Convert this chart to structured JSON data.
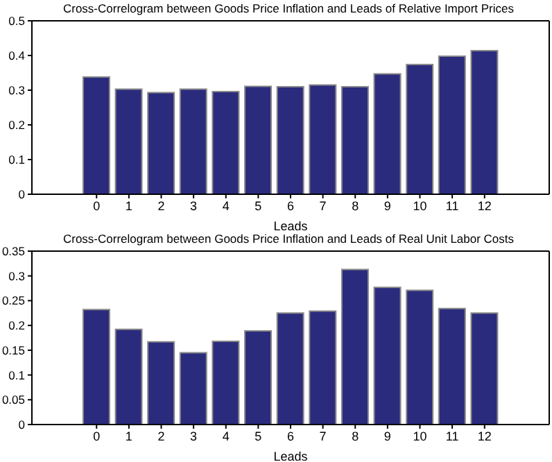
{
  "chart_data": [
    {
      "type": "bar",
      "title": "Cross-Correlogram between Goods Price Inflation and Leads of Relative Import Prices",
      "xlabel": "Leads",
      "x": [
        0,
        1,
        2,
        3,
        4,
        5,
        6,
        7,
        8,
        9,
        10,
        11,
        12
      ],
      "values": [
        0.338,
        0.303,
        0.293,
        0.303,
        0.296,
        0.311,
        0.31,
        0.315,
        0.31,
        0.347,
        0.374,
        0.398,
        0.414
      ],
      "color": "#2b2b7e",
      "xlim": [
        -2,
        14
      ],
      "xticks": [
        0,
        1,
        2,
        3,
        4,
        5,
        6,
        7,
        8,
        9,
        10,
        11,
        12
      ],
      "ylim": [
        0,
        0.5
      ],
      "yticks": [
        0,
        0.1,
        0.2,
        0.3,
        0.4,
        0.5
      ]
    },
    {
      "type": "bar",
      "title": "Cross-Correlogram between Goods Price Inflation and Leads of Real Unit Labor Costs",
      "xlabel": "Leads",
      "x": [
        0,
        1,
        2,
        3,
        4,
        5,
        6,
        7,
        8,
        9,
        10,
        11,
        12
      ],
      "values": [
        0.232,
        0.192,
        0.167,
        0.145,
        0.168,
        0.189,
        0.225,
        0.229,
        0.313,
        0.277,
        0.271,
        0.234,
        0.225
      ],
      "color": "#2b2b7e",
      "xlim": [
        -2,
        14
      ],
      "xticks": [
        0,
        1,
        2,
        3,
        4,
        5,
        6,
        7,
        8,
        9,
        10,
        11,
        12
      ],
      "ylim": [
        0,
        0.35
      ],
      "yticks": [
        0,
        0.05,
        0.1,
        0.15,
        0.2,
        0.25,
        0.3,
        0.35
      ]
    }
  ]
}
